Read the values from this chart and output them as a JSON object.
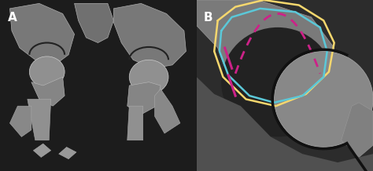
{
  "fig_width": 4.74,
  "fig_height": 2.18,
  "dpi": 100,
  "bg_color": "#1a1a1a",
  "panel_a_bg": "#2a2a2a",
  "panel_b_bg": "#3a3a3a",
  "label_a": "A",
  "label_b": "B",
  "label_color": "white",
  "label_fontsize": 11,
  "label_fontweight": "bold",
  "divider_color": "#888888",
  "yellow_outline_color": "#f5d76e",
  "cyan_outline_color": "#5bc8d8",
  "magenta_line_color": "#cc2288",
  "black_outline_color": "#111111",
  "border_color": "#555555"
}
